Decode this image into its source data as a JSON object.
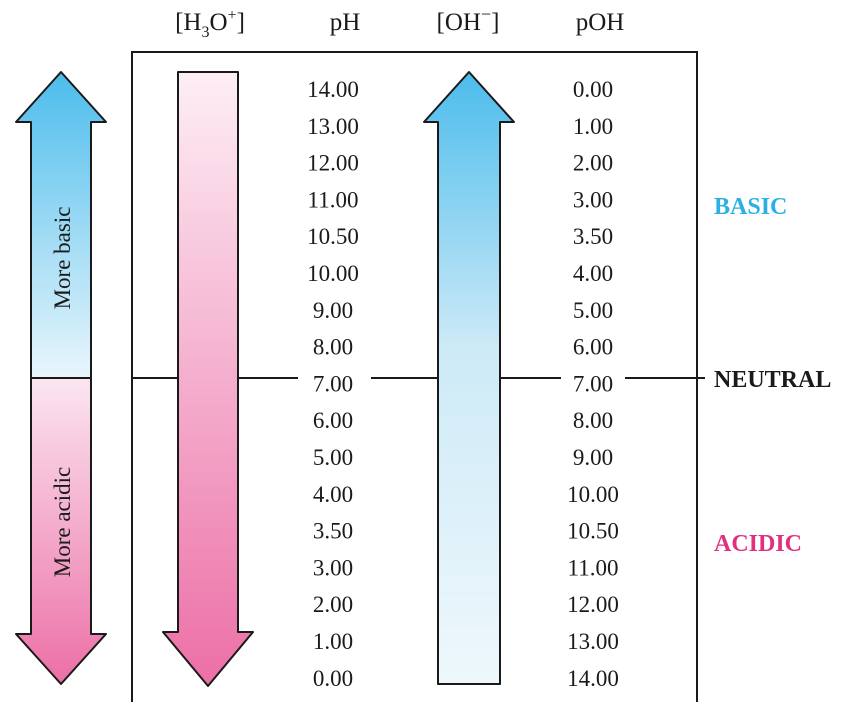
{
  "headers": {
    "h3o": {
      "prefix": "[H",
      "sub": "3",
      "mid": "O",
      "sup": "+",
      "suffix": "]"
    },
    "ph": "pH",
    "oh": {
      "base": "[OH",
      "sup": "−",
      "suffix": "]"
    },
    "poh": "pOH"
  },
  "side_arrow": {
    "upper_label": "More basic",
    "lower_label": "More acidic"
  },
  "scale": {
    "ph": [
      "14.00",
      "13.00",
      "12.00",
      "11.00",
      "10.50",
      "10.00",
      "9.00",
      "8.00",
      "7.00",
      "6.00",
      "5.00",
      "4.00",
      "3.50",
      "3.00",
      "2.00",
      "1.00",
      "0.00"
    ],
    "poh": [
      "0.00",
      "1.00",
      "2.00",
      "3.00",
      "3.50",
      "4.00",
      "5.00",
      "6.00",
      "7.00",
      "8.00",
      "9.00",
      "10.00",
      "10.50",
      "11.00",
      "12.00",
      "13.00",
      "14.00"
    ]
  },
  "labels": {
    "basic": "BASIC",
    "neutral": "NEUTRAL",
    "acidic": "ACIDIC"
  },
  "colors": {
    "basic": "#2bb0e6",
    "acidic": "#e0307f",
    "neutral": "#1a1a1a",
    "blue_dark": "#4cbcec",
    "blue_light": "#e9f6fc",
    "pink_dark": "#ec6fa6",
    "pink_light": "#fbe6f0"
  }
}
